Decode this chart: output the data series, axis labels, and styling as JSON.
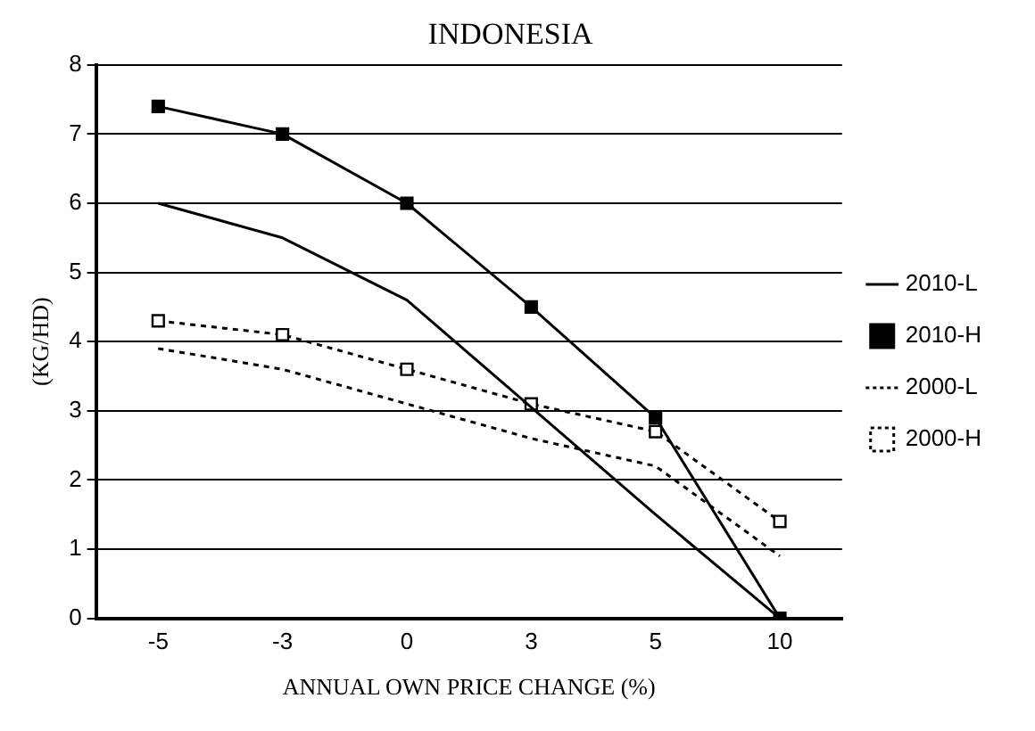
{
  "chart_data": {
    "type": "line",
    "title": "INDONESIA",
    "xlabel": "ANNUAL OWN PRICE CHANGE (%)",
    "ylabel": "(KG/HD)",
    "categories": [
      "-5",
      "-3",
      "0",
      "3",
      "5",
      "10"
    ],
    "series": [
      {
        "name": "2010-L",
        "color": "#000000",
        "values": [
          6.0,
          5.5,
          4.6,
          3.05,
          1.5,
          0
        ],
        "marker": "none",
        "line_style": "solid"
      },
      {
        "name": "2010-H",
        "color": "#000000",
        "values": [
          7.4,
          7.0,
          6.0,
          4.5,
          2.9,
          0
        ],
        "marker": "square",
        "line_style": "solid"
      },
      {
        "name": "2000-L",
        "color": "#000000",
        "values": [
          3.9,
          3.6,
          3.1,
          2.6,
          2.2,
          0.9
        ],
        "marker": "none",
        "line_style": "dotted"
      },
      {
        "name": "2000-H",
        "color": "#000000",
        "values": [
          4.3,
          4.1,
          3.6,
          3.1,
          2.7,
          1.4
        ],
        "marker": "square",
        "line_style": "dotted"
      }
    ],
    "ylim": [
      0,
      8
    ],
    "yticks": [
      0,
      1,
      2,
      3,
      4,
      5,
      6,
      7,
      8
    ],
    "grid": "y",
    "legend": "right"
  }
}
